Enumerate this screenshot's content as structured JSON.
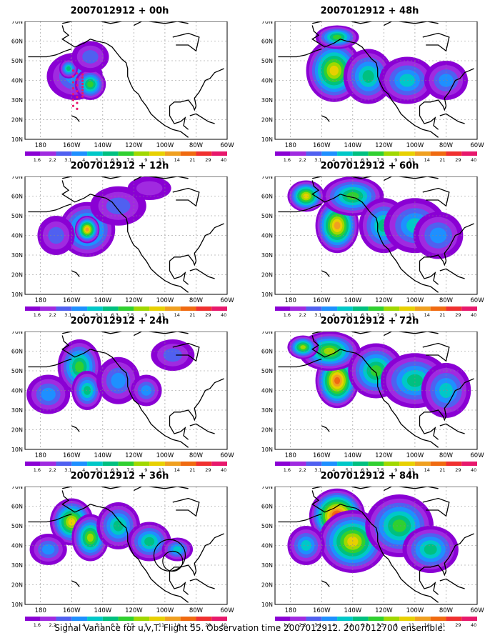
{
  "figure_caption": "Signal Variance for u,v,T. Flight 55. Observation time 2007012912. 2007012700 ensemble.",
  "colors": [
    "#8a00d4",
    "#a02ae0",
    "#5060f0",
    "#1e90ff",
    "#00c8c8",
    "#00c080",
    "#30d030",
    "#a0d800",
    "#e8d000",
    "#f0a020",
    "#f06a10",
    "#f03030",
    "#e8186c"
  ],
  "chart_data": {
    "type": "heatmap",
    "colorbar_levels": [
      "1.6",
      "2.2",
      "3.1",
      "4",
      "5.1",
      "6.3",
      "7.5",
      "9",
      "11",
      "14",
      "21",
      "29",
      "40"
    ],
    "x_ticks": [
      "180",
      "160W",
      "140W",
      "120W",
      "100W",
      "80W",
      "60W"
    ],
    "y_ticks": [
      "10N",
      "20N",
      "30N",
      "40N",
      "50N",
      "60N",
      "70N"
    ],
    "xlim": [
      -190,
      -60
    ],
    "ylim": [
      10,
      70
    ],
    "panels": [
      {
        "title": "2007012912 + 00h",
        "lead": "00h",
        "blobs": [
          [
            -158,
            42,
            18,
            12,
            3
          ],
          [
            -148,
            38,
            10,
            8,
            6
          ],
          [
            -162,
            46,
            6,
            5,
            5
          ],
          [
            -148,
            52,
            12,
            8,
            2
          ]
        ],
        "track": true
      },
      {
        "title": "2007012912 + 12h",
        "lead": "12h",
        "blobs": [
          [
            -150,
            43,
            18,
            14,
            6
          ],
          [
            -150,
            43,
            8,
            7,
            9
          ],
          [
            -170,
            40,
            12,
            10,
            2
          ],
          [
            -130,
            55,
            18,
            10,
            2
          ],
          [
            -110,
            64,
            14,
            6,
            1
          ]
        ],
        "track": false
      },
      {
        "title": "2007012912 + 24h",
        "lead": "24h",
        "blobs": [
          [
            -155,
            52,
            14,
            14,
            6
          ],
          [
            -150,
            40,
            10,
            10,
            5
          ],
          [
            -175,
            38,
            14,
            10,
            3
          ],
          [
            -130,
            45,
            14,
            12,
            3
          ],
          [
            -112,
            40,
            10,
            8,
            3
          ],
          [
            -95,
            58,
            14,
            8,
            2
          ]
        ],
        "track": false
      },
      {
        "title": "2007012912 + 36h",
        "lead": "36h",
        "blobs": [
          [
            -160,
            52,
            14,
            12,
            8
          ],
          [
            -148,
            44,
            12,
            12,
            7
          ],
          [
            -130,
            50,
            14,
            12,
            5
          ],
          [
            -110,
            42,
            14,
            10,
            5
          ],
          [
            -92,
            38,
            10,
            6,
            4
          ],
          [
            -175,
            38,
            12,
            8,
            3
          ]
        ],
        "track": false,
        "circle": true
      },
      {
        "title": "2007012912 + 48h",
        "lead": "48h",
        "blobs": [
          [
            -152,
            45,
            18,
            16,
            8
          ],
          [
            -130,
            42,
            16,
            14,
            5
          ],
          [
            -105,
            40,
            18,
            12,
            4
          ],
          [
            -150,
            62,
            14,
            6,
            6
          ],
          [
            -80,
            40,
            14,
            10,
            3
          ]
        ],
        "track": false
      },
      {
        "title": "2007012912 + 60h",
        "lead": "60h",
        "blobs": [
          [
            -150,
            45,
            14,
            14,
            9
          ],
          [
            -140,
            60,
            20,
            10,
            6
          ],
          [
            -120,
            45,
            16,
            14,
            5
          ],
          [
            -100,
            45,
            20,
            14,
            4
          ],
          [
            -170,
            60,
            12,
            8,
            8
          ],
          [
            -85,
            40,
            16,
            12,
            3
          ]
        ],
        "track": false
      },
      {
        "title": "2007012912 + 72h",
        "lead": "72h",
        "blobs": [
          [
            -150,
            45,
            14,
            14,
            10
          ],
          [
            -155,
            60,
            20,
            10,
            7
          ],
          [
            -125,
            50,
            18,
            14,
            6
          ],
          [
            -100,
            45,
            22,
            14,
            5
          ],
          [
            -80,
            40,
            16,
            14,
            4
          ],
          [
            -172,
            62,
            10,
            6,
            7
          ]
        ],
        "track": false
      },
      {
        "title": "2007012912 + 84h",
        "lead": "84h",
        "blobs": [
          [
            -150,
            55,
            18,
            14,
            11
          ],
          [
            -140,
            42,
            22,
            16,
            8
          ],
          [
            -110,
            50,
            22,
            16,
            6
          ],
          [
            -90,
            38,
            18,
            12,
            5
          ],
          [
            -170,
            40,
            12,
            10,
            4
          ]
        ],
        "track": false
      }
    ]
  }
}
